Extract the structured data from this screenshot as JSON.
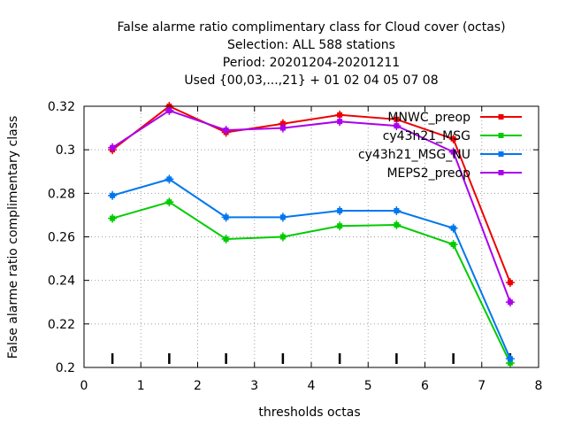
{
  "chart_data": {
    "type": "line",
    "title_lines": [
      "False alarme ratio complimentary class  for Cloud cover (octas)",
      "Selection: ALL     588 stations",
      "Period: 20201204-20201211",
      "Used {00,03,...,21} + 01 02 04 05 07 08"
    ],
    "xlabel": "thresholds octas",
    "ylabel": "False alarme ratio complimentary class",
    "xlim": [
      0,
      8
    ],
    "ylim": [
      0.2,
      0.32
    ],
    "xticks": [
      0,
      1,
      2,
      3,
      4,
      5,
      6,
      7,
      8
    ],
    "xtick_labels": [
      "0",
      "1",
      "2",
      "3",
      "4",
      "5",
      "6",
      "7",
      "8"
    ],
    "yticks": [
      0.2,
      0.22,
      0.24,
      0.26,
      0.28,
      0.3,
      0.32
    ],
    "ytick_labels": [
      "0.2",
      "0.22",
      "0.24",
      "0.26",
      "0.28",
      "0.3",
      "0.32"
    ],
    "grid": true,
    "legend_position": "top-right",
    "x": [
      0.5,
      1.5,
      2.5,
      3.5,
      4.5,
      5.5,
      6.5,
      7.5
    ],
    "series": [
      {
        "name": "MNWC_preop",
        "color": "#ee0000",
        "values": [
          0.3,
          0.32,
          0.308,
          0.312,
          0.316,
          0.314,
          0.305,
          0.239
        ]
      },
      {
        "name": "cy43h21_MSG",
        "color": "#00cc00",
        "values": [
          0.2685,
          0.276,
          0.259,
          0.26,
          0.265,
          0.2655,
          0.2565,
          0.202
        ]
      },
      {
        "name": "cy43h21_MSG_NU",
        "color": "#0077ee",
        "values": [
          0.279,
          0.2865,
          0.269,
          0.269,
          0.272,
          0.272,
          0.264,
          0.204
        ]
      },
      {
        "name": "MEPS2_preop",
        "color": "#aa00ee",
        "values": [
          0.301,
          0.318,
          0.309,
          0.31,
          0.313,
          0.311,
          0.299,
          0.23
        ]
      }
    ],
    "bottom_marks_x": [
      0.5,
      1.5,
      2.5,
      3.5,
      4.5,
      5.5,
      6.5,
      7.5
    ]
  }
}
